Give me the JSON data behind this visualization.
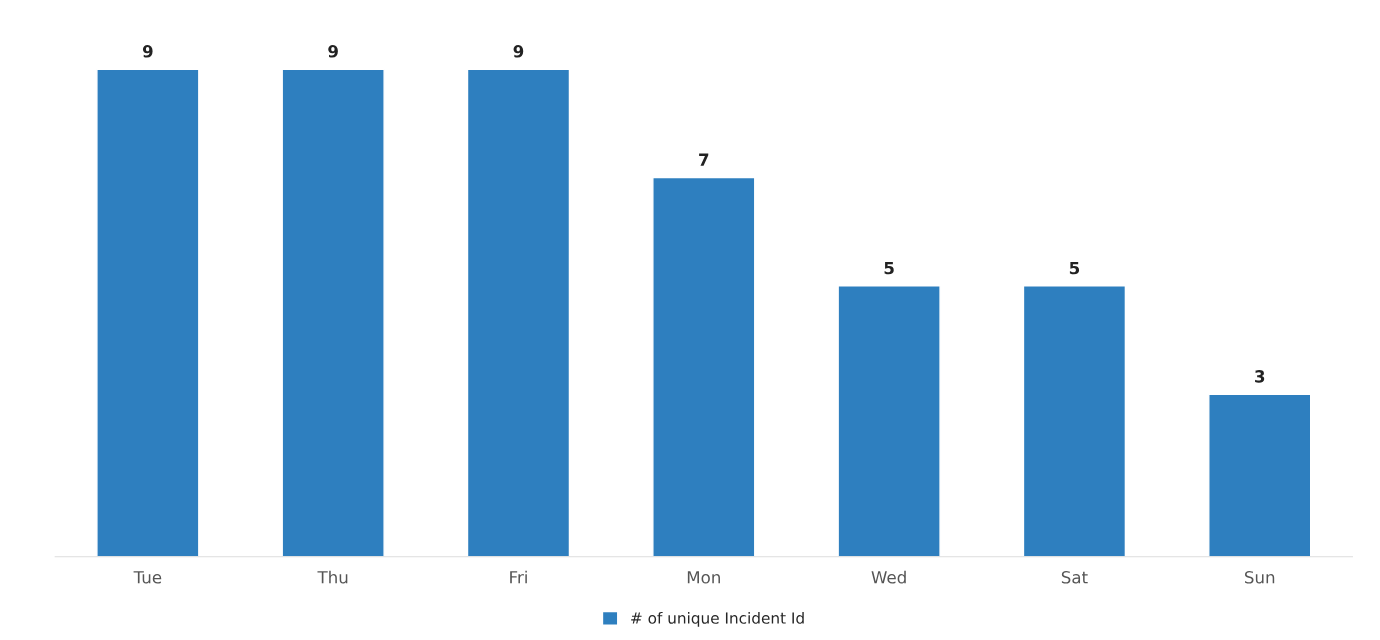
{
  "chart_data": {
    "type": "bar",
    "categories": [
      "Tue",
      "Thu",
      "Fri",
      "Mon",
      "Wed",
      "Sat",
      "Sun"
    ],
    "series": [
      {
        "name": "# of unique Incident Id",
        "color": "#2e7fbf",
        "values": [
          9,
          9,
          9,
          7,
          5,
          5,
          3
        ]
      }
    ],
    "data_labels": true,
    "legend": "bottom",
    "tick_labels": "x"
  }
}
